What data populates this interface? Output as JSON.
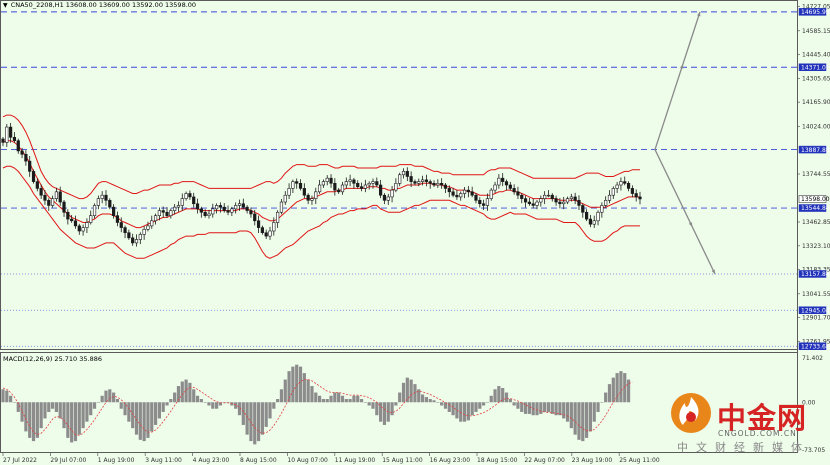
{
  "chart_title": {
    "arrow_icon": "triangle-down-icon",
    "symbol": "CNA50_2208,H1",
    "ohlc": "13608.00 13609.00 13592.00 13598.00"
  },
  "macd_title": "MACD(12,26,9) 25.710 35.886",
  "price_axis_ticks": [
    "14727.05",
    "14585.15",
    "14445.40",
    "14305.65",
    "14165.90",
    "14024.00",
    "13744.55",
    "13462.85",
    "13323.10",
    "13183.35",
    "13041.55",
    "12901.70",
    "12761.95"
  ],
  "macd_axis_ticks": [
    "71.402",
    "0.00",
    "-73.705"
  ],
  "time_axis_ticks": [
    "27 Jul 2022",
    "29 Jul 07:00",
    "1 Aug 19:00",
    "3 Aug 11:00",
    "4 Aug 23:00",
    "8 Aug 15:00",
    "10 Aug 07:00",
    "11 Aug 19:00",
    "15 Aug 11:00",
    "16 Aug 23:00",
    "18 Aug 15:00",
    "22 Aug 07:00",
    "23 Aug 19:00",
    "25 Aug 11:00"
  ],
  "price_tags": [
    {
      "label": "14695.99",
      "kind": "level"
    },
    {
      "label": "14371.01",
      "kind": "level"
    },
    {
      "label": "13887.88",
      "kind": "level"
    },
    {
      "label": "13598.00",
      "kind": "current"
    },
    {
      "label": "13544.84",
      "kind": "level"
    },
    {
      "label": "13157.84",
      "kind": "level"
    },
    {
      "label": "12945.04",
      "kind": "level"
    },
    {
      "label": "12733.68",
      "kind": "level"
    }
  ],
  "watermark": {
    "icon": "cngold-flame-logo-icon",
    "name": "中金网",
    "url": "CNGOLD.COM.CN",
    "slogan": "中文财经新媒体"
  },
  "colors": {
    "background": "#eefcea",
    "bollinger": "#e01515",
    "candle_body": "#1a1a1a",
    "dashed_level": "#3a4ad8",
    "dotted_level": "#6a7ad8",
    "projection_arrow": "#8a8a8a",
    "tag_bg": "#2233bb",
    "current_tag_bg": "#ffffff",
    "macd_hist": "#8c8c8c",
    "macd_signal": "#e04040"
  },
  "chart_data": {
    "type": "candlestick",
    "symbol": "CNA50_2208",
    "timeframe": "H1",
    "ylim": [
      12700,
      14760
    ],
    "closes": [
      13930,
      14020,
      13960,
      13940,
      13880,
      13860,
      13820,
      13760,
      13700,
      13660,
      13620,
      13590,
      13560,
      13600,
      13640,
      13580,
      13520,
      13480,
      13470,
      13440,
      13410,
      13430,
      13460,
      13500,
      13560,
      13600,
      13620,
      13590,
      13550,
      13500,
      13460,
      13430,
      13400,
      13370,
      13340,
      13360,
      13390,
      13420,
      13440,
      13470,
      13500,
      13530,
      13520,
      13500,
      13530,
      13550,
      13560,
      13600,
      13630,
      13610,
      13570,
      13540,
      13520,
      13500,
      13510,
      13540,
      13560,
      13550,
      13530,
      13520,
      13540,
      13560,
      13570,
      13550,
      13530,
      13510,
      13470,
      13430,
      13400,
      13380,
      13410,
      13460,
      13520,
      13580,
      13620,
      13660,
      13700,
      13690,
      13660,
      13620,
      13590,
      13600,
      13640,
      13680,
      13700,
      13720,
      13690,
      13650,
      13640,
      13680,
      13700,
      13710,
      13690,
      13670,
      13660,
      13680,
      13690,
      13700,
      13680,
      13620,
      13590,
      13610,
      13650,
      13690,
      13740,
      13760,
      13730,
      13700,
      13690,
      13700,
      13710,
      13700,
      13690,
      13680,
      13690,
      13680,
      13660,
      13640,
      13620,
      13610,
      13630,
      13650,
      13640,
      13620,
      13590,
      13570,
      13560,
      13600,
      13650,
      13680,
      13720,
      13700,
      13680,
      13660,
      13640,
      13620,
      13600,
      13580,
      13570,
      13560,
      13580,
      13600,
      13620,
      13620,
      13600,
      13580,
      13570,
      13580,
      13600,
      13610,
      13590,
      13560,
      13520,
      13480,
      13450,
      13470,
      13520,
      13560,
      13590,
      13620,
      13660,
      13680,
      13700,
      13690,
      13660,
      13630,
      13610,
      13598
    ],
    "bollinger_upper": [
      14080,
      14090,
      14090,
      14080,
      14060,
      14030,
      13990,
      13940,
      13880,
      13820,
      13760,
      13720,
      13690,
      13670,
      13660,
      13650,
      13640,
      13630,
      13620,
      13610,
      13600,
      13600,
      13610,
      13630,
      13660,
      13690,
      13700,
      13700,
      13690,
      13680,
      13670,
      13660,
      13650,
      13640,
      13630,
      13630,
      13640,
      13650,
      13650,
      13660,
      13670,
      13680,
      13680,
      13680,
      13680,
      13690,
      13690,
      13700,
      13700,
      13700,
      13700,
      13690,
      13680,
      13670,
      13660,
      13660,
      13660,
      13660,
      13660,
      13660,
      13660,
      13660,
      13660,
      13660,
      13660,
      13660,
      13670,
      13680,
      13690,
      13700,
      13700,
      13690,
      13700,
      13720,
      13750,
      13770,
      13790,
      13800,
      13800,
      13800,
      13790,
      13790,
      13790,
      13800,
      13800,
      13800,
      13790,
      13780,
      13780,
      13790,
      13790,
      13790,
      13790,
      13780,
      13780,
      13780,
      13780,
      13780,
      13780,
      13790,
      13790,
      13790,
      13790,
      13790,
      13800,
      13800,
      13800,
      13800,
      13790,
      13790,
      13790,
      13780,
      13770,
      13760,
      13760,
      13750,
      13750,
      13750,
      13740,
      13740,
      13740,
      13740,
      13740,
      13740,
      13740,
      13740,
      13740,
      13760,
      13770,
      13770,
      13780,
      13780,
      13780,
      13780,
      13770,
      13760,
      13750,
      13740,
      13730,
      13720,
      13720,
      13720,
      13720,
      13720,
      13720,
      13720,
      13720,
      13720,
      13720,
      13720,
      13720,
      13730,
      13740,
      13750,
      13750,
      13750,
      13750,
      13740,
      13730,
      13730,
      13730,
      13740,
      13750,
      13760,
      13760,
      13770,
      13770,
      13770
    ],
    "bollinger_middle": [
      13930,
      13940,
      13940,
      13930,
      13910,
      13880,
      13850,
      13810,
      13760,
      13720,
      13680,
      13640,
      13610,
      13590,
      13570,
      13550,
      13530,
      13510,
      13490,
      13480,
      13470,
      13460,
      13460,
      13470,
      13480,
      13500,
      13510,
      13510,
      13510,
      13500,
      13490,
      13470,
      13460,
      13450,
      13440,
      13430,
      13430,
      13440,
      13450,
      13460,
      13470,
      13480,
      13490,
      13490,
      13500,
      13510,
      13520,
      13530,
      13540,
      13540,
      13540,
      13540,
      13530,
      13530,
      13530,
      13530,
      13530,
      13530,
      13530,
      13530,
      13530,
      13530,
      13540,
      13540,
      13540,
      13530,
      13520,
      13510,
      13490,
      13480,
      13470,
      13470,
      13480,
      13500,
      13520,
      13540,
      13560,
      13580,
      13590,
      13600,
      13600,
      13600,
      13610,
      13620,
      13630,
      13640,
      13640,
      13640,
      13650,
      13650,
      13660,
      13660,
      13660,
      13660,
      13660,
      13660,
      13670,
      13670,
      13670,
      13660,
      13660,
      13650,
      13650,
      13660,
      13660,
      13670,
      13680,
      13680,
      13680,
      13680,
      13690,
      13690,
      13690,
      13680,
      13680,
      13680,
      13670,
      13670,
      13660,
      13650,
      13650,
      13650,
      13640,
      13640,
      13630,
      13620,
      13620,
      13620,
      13620,
      13630,
      13640,
      13640,
      13650,
      13650,
      13640,
      13640,
      13630,
      13620,
      13610,
      13600,
      13600,
      13600,
      13600,
      13600,
      13600,
      13600,
      13590,
      13590,
      13590,
      13590,
      13590,
      13580,
      13570,
      13560,
      13550,
      13550,
      13550,
      13550,
      13550,
      13560,
      13570,
      13580,
      13590,
      13600,
      13610,
      13610,
      13610,
      13610
    ],
    "bollinger_lower": [
      13780,
      13790,
      13790,
      13780,
      13760,
      13730,
      13700,
      13670,
      13630,
      13600,
      13570,
      13540,
      13510,
      13480,
      13450,
      13420,
      13400,
      13380,
      13360,
      13340,
      13330,
      13320,
      13310,
      13310,
      13310,
      13320,
      13330,
      13340,
      13340,
      13340,
      13320,
      13300,
      13280,
      13270,
      13260,
      13250,
      13250,
      13250,
      13260,
      13270,
      13280,
      13290,
      13300,
      13310,
      13330,
      13340,
      13360,
      13370,
      13380,
      13380,
      13380,
      13390,
      13390,
      13390,
      13400,
      13400,
      13400,
      13400,
      13400,
      13400,
      13400,
      13400,
      13410,
      13410,
      13410,
      13400,
      13370,
      13330,
      13290,
      13260,
      13250,
      13260,
      13270,
      13290,
      13310,
      13320,
      13330,
      13350,
      13370,
      13390,
      13410,
      13420,
      13430,
      13440,
      13460,
      13470,
      13490,
      13500,
      13510,
      13510,
      13520,
      13530,
      13530,
      13540,
      13540,
      13540,
      13550,
      13560,
      13560,
      13540,
      13530,
      13520,
      13520,
      13520,
      13520,
      13530,
      13540,
      13550,
      13560,
      13560,
      13570,
      13580,
      13590,
      13590,
      13590,
      13590,
      13590,
      13590,
      13580,
      13570,
      13560,
      13560,
      13550,
      13540,
      13530,
      13520,
      13510,
      13490,
      13480,
      13480,
      13490,
      13500,
      13510,
      13520,
      13510,
      13510,
      13510,
      13510,
      13500,
      13490,
      13480,
      13480,
      13480,
      13480,
      13480,
      13480,
      13470,
      13460,
      13460,
      13460,
      13460,
      13440,
      13410,
      13380,
      13360,
      13350,
      13350,
      13350,
      13360,
      13380,
      13400,
      13410,
      13430,
      13440,
      13440,
      13440,
      13440,
      13440
    ],
    "levels": [
      {
        "price": 14695.99,
        "style": "dashed"
      },
      {
        "price": 14371.01,
        "style": "dashed"
      },
      {
        "price": 13887.88,
        "style": "dashed"
      },
      {
        "price": 13544.84,
        "style": "dashed"
      },
      {
        "price": 13157.84,
        "style": "dotted"
      },
      {
        "price": 12945.04,
        "style": "dotted"
      },
      {
        "price": 12733.68,
        "style": "dotted"
      }
    ],
    "projection_arrows": [
      {
        "from_price": 13887.88,
        "to_price": 14695.99
      },
      {
        "from_price": 13887.88,
        "to_price": 13157.84
      }
    ],
    "macd": {
      "ylim": [
        -73.705,
        71.402
      ],
      "histogram": [
        20,
        18,
        10,
        0,
        -15,
        -30,
        -45,
        -55,
        -60,
        -55,
        -40,
        -25,
        -15,
        -10,
        -15,
        -25,
        -40,
        -55,
        -62,
        -60,
        -50,
        -40,
        -30,
        -20,
        -10,
        0,
        10,
        18,
        20,
        15,
        5,
        -10,
        -20,
        -30,
        -40,
        -50,
        -58,
        -60,
        -55,
        -45,
        -35,
        -25,
        -15,
        -5,
        5,
        15,
        25,
        32,
        35,
        30,
        20,
        10,
        5,
        0,
        -5,
        -10,
        -10,
        -5,
        0,
        0,
        -5,
        -10,
        -20,
        -35,
        -50,
        -60,
        -65,
        -60,
        -50,
        -38,
        -25,
        -10,
        5,
        20,
        35,
        48,
        55,
        58,
        55,
        45,
        35,
        25,
        15,
        10,
        5,
        5,
        10,
        15,
        15,
        10,
        5,
        5,
        10,
        10,
        5,
        0,
        -5,
        -10,
        -20,
        -30,
        -35,
        -30,
        -20,
        -5,
        15,
        30,
        38,
        35,
        28,
        20,
        12,
        8,
        5,
        3,
        0,
        -5,
        -10,
        -15,
        -20,
        -25,
        -30,
        -30,
        -28,
        -20,
        -15,
        -10,
        -5,
        0,
        10,
        20,
        25,
        22,
        15,
        5,
        -5,
        -10,
        -15,
        -18,
        -18,
        -20,
        -20,
        -18,
        -15,
        -15,
        -18,
        -20,
        -20,
        -25,
        -30,
        -40,
        -50,
        -58,
        -60,
        -55,
        -45,
        -30,
        -15,
        0,
        15,
        28,
        38,
        45,
        48,
        45,
        35
      ],
      "signal": [
        22,
        20,
        15,
        8,
        -2,
        -14,
        -26,
        -37,
        -46,
        -50,
        -48,
        -42,
        -34,
        -26,
        -22,
        -23,
        -28,
        -36,
        -44,
        -50,
        -51,
        -48,
        -42,
        -35,
        -27,
        -18,
        -9,
        0,
        6,
        9,
        8,
        4,
        -2,
        -10,
        -18,
        -27,
        -35,
        -42,
        -46,
        -46,
        -43,
        -37,
        -30,
        -22,
        -14,
        -5,
        4,
        12,
        19,
        23,
        23,
        20,
        16,
        12,
        8,
        4,
        1,
        -1,
        -1,
        -1,
        -2,
        -4,
        -8,
        -14,
        -22,
        -31,
        -39,
        -45,
        -48,
        -47,
        -43,
        -36,
        -27,
        -17,
        -6,
        6,
        17,
        26,
        32,
        35,
        35,
        33,
        29,
        25,
        21,
        17,
        15,
        15,
        15,
        14,
        12,
        11,
        11,
        11,
        10,
        9,
        7,
        4,
        0,
        -6,
        -11,
        -15,
        -16,
        -14,
        -9,
        -2,
        5,
        11,
        15,
        17,
        16,
        14,
        12,
        9,
        6,
        3,
        -1,
        -4,
        -8,
        -12,
        -16,
        -19,
        -21,
        -21,
        -20,
        -18,
        -16,
        -13,
        -9,
        -5,
        0,
        4,
        6,
        6,
        4,
        2,
        -1,
        -4,
        -7,
        -10,
        -12,
        -14,
        -15,
        -16,
        -16,
        -17,
        -18,
        -19,
        -21,
        -25,
        -30,
        -36,
        -41,
        -44,
        -44,
        -42,
        -36,
        -29,
        -20,
        -10,
        0,
        9,
        17,
        24,
        29,
        31
      ],
      "zero_line": 0
    }
  }
}
